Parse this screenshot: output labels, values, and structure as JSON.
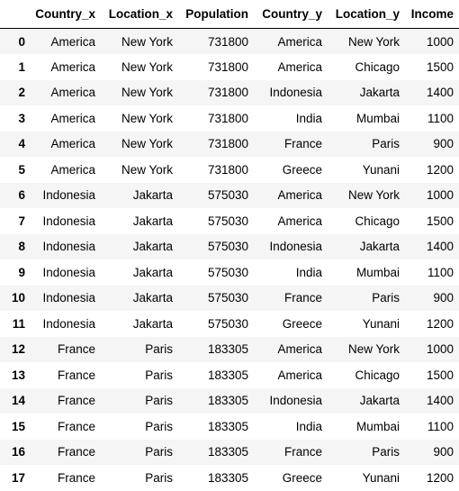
{
  "columns": [
    "",
    "Country_x",
    "Location_x",
    "Population",
    "Country_y",
    "Location_y",
    "Income"
  ],
  "rows": [
    [
      "0",
      "America",
      "New York",
      "731800",
      "America",
      "New York",
      "1000"
    ],
    [
      "1",
      "America",
      "New York",
      "731800",
      "America",
      "Chicago",
      "1500"
    ],
    [
      "2",
      "America",
      "New York",
      "731800",
      "Indonesia",
      "Jakarta",
      "1400"
    ],
    [
      "3",
      "America",
      "New York",
      "731800",
      "India",
      "Mumbai",
      "1100"
    ],
    [
      "4",
      "America",
      "New York",
      "731800",
      "France",
      "Paris",
      "900"
    ],
    [
      "5",
      "America",
      "New York",
      "731800",
      "Greece",
      "Yunani",
      "1200"
    ],
    [
      "6",
      "Indonesia",
      "Jakarta",
      "575030",
      "America",
      "New York",
      "1000"
    ],
    [
      "7",
      "Indonesia",
      "Jakarta",
      "575030",
      "America",
      "Chicago",
      "1500"
    ],
    [
      "8",
      "Indonesia",
      "Jakarta",
      "575030",
      "Indonesia",
      "Jakarta",
      "1400"
    ],
    [
      "9",
      "Indonesia",
      "Jakarta",
      "575030",
      "India",
      "Mumbai",
      "1100"
    ],
    [
      "10",
      "Indonesia",
      "Jakarta",
      "575030",
      "France",
      "Paris",
      "900"
    ],
    [
      "11",
      "Indonesia",
      "Jakarta",
      "575030",
      "Greece",
      "Yunani",
      "1200"
    ],
    [
      "12",
      "France",
      "Paris",
      "183305",
      "America",
      "New York",
      "1000"
    ],
    [
      "13",
      "France",
      "Paris",
      "183305",
      "America",
      "Chicago",
      "1500"
    ],
    [
      "14",
      "France",
      "Paris",
      "183305",
      "Indonesia",
      "Jakarta",
      "1400"
    ],
    [
      "15",
      "France",
      "Paris",
      "183305",
      "India",
      "Mumbai",
      "1100"
    ],
    [
      "16",
      "France",
      "Paris",
      "183305",
      "France",
      "Paris",
      "900"
    ],
    [
      "17",
      "France",
      "Paris",
      "183305",
      "Greece",
      "Yunani",
      "1200"
    ]
  ],
  "colors": {
    "stripe": "#f5f5f5",
    "background": "#ffffff",
    "header_rule": "#000000"
  }
}
